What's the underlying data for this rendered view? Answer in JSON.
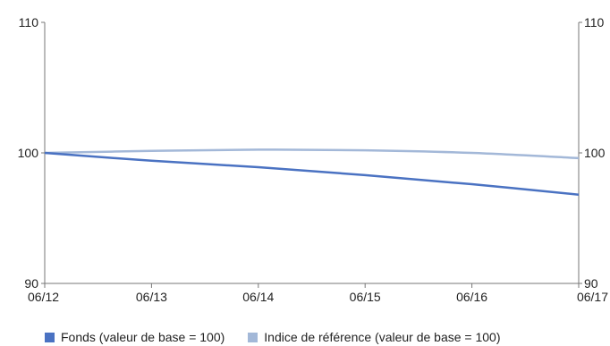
{
  "colors": {
    "fonds": "#4a72c2",
    "indice": "#a3b8d8",
    "axis": "#777777"
  },
  "chart_data": {
    "type": "line",
    "title": "",
    "xlabel": "",
    "ylabel": "",
    "categories": [
      "06/12",
      "06/13",
      "06/14",
      "06/15",
      "06/16",
      "06/17"
    ],
    "x": [
      "06/12",
      "06/13",
      "06/14",
      "06/15",
      "06/16",
      "06/17"
    ],
    "ylim": [
      90,
      110
    ],
    "yticks": [
      "90",
      "100",
      "110"
    ],
    "grid": false,
    "legend": "bottom",
    "series": [
      {
        "name": "Fonds (valeur de base = 100)",
        "values": [
          100.0,
          99.4,
          98.9,
          98.3,
          97.6,
          96.8
        ]
      },
      {
        "name": "Indice de référence (valeur de base = 100)",
        "values": [
          100.0,
          100.15,
          100.25,
          100.2,
          100.0,
          99.6
        ]
      }
    ]
  }
}
